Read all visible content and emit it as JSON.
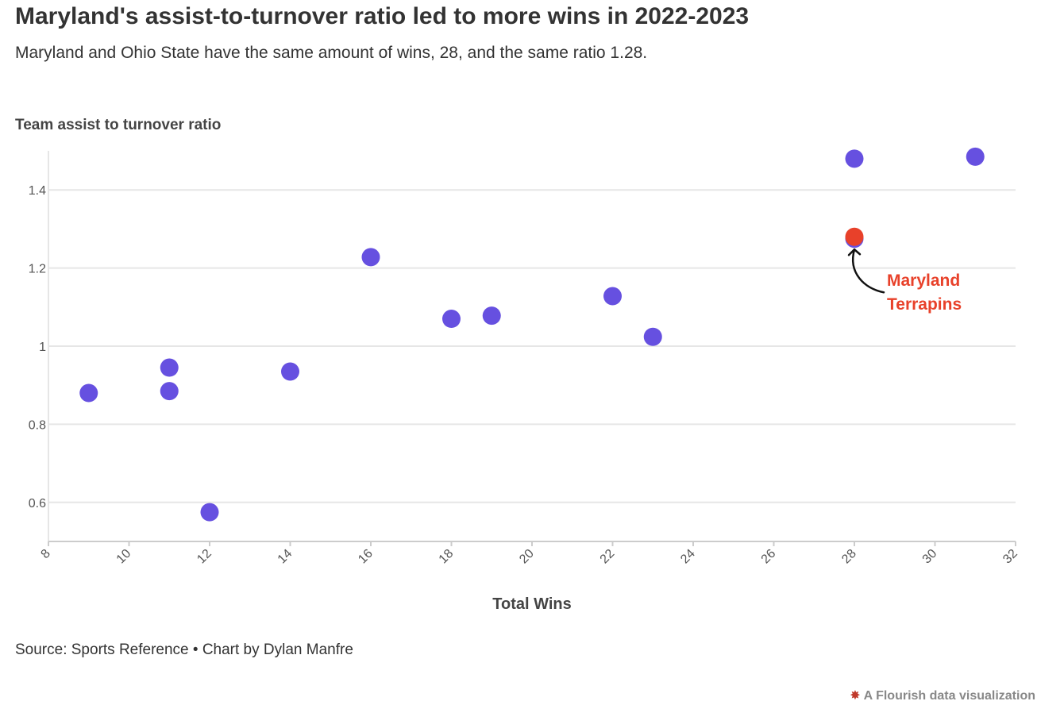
{
  "title": "Maryland's assist-to-turnover ratio led to more wins in 2022-2023",
  "subtitle": "Maryland and Ohio State have the same amount of wins, 28, and the same ratio 1.28.",
  "source": "Source: Sports Reference • Chart by Dylan Manfre",
  "credit": "A Flourish data visualization",
  "colors": {
    "point": "#6650e0",
    "highlight": "#e8412a",
    "grid": "#e6e6e6",
    "axis": "#cccccc"
  },
  "chart_data": {
    "type": "scatter",
    "xlabel": "Total Wins",
    "ylabel": "Team assist to turnover ratio",
    "xlim": [
      8,
      32
    ],
    "ylim": [
      0.5,
      1.5
    ],
    "xticks": [
      8,
      10,
      12,
      14,
      16,
      18,
      20,
      22,
      24,
      26,
      28,
      30,
      32
    ],
    "yticks": [
      0.6,
      0.8,
      1,
      1.2,
      1.4
    ],
    "ytick_labels": [
      "0.6",
      "0.8",
      "1",
      "1.2",
      "1.4"
    ],
    "grid": true,
    "points": [
      {
        "x": 9,
        "y": 0.88
      },
      {
        "x": 11,
        "y": 0.945
      },
      {
        "x": 11,
        "y": 0.885
      },
      {
        "x": 12,
        "y": 0.575
      },
      {
        "x": 14,
        "y": 0.935
      },
      {
        "x": 16,
        "y": 1.228
      },
      {
        "x": 18,
        "y": 1.07
      },
      {
        "x": 19,
        "y": 1.078
      },
      {
        "x": 22,
        "y": 1.128
      },
      {
        "x": 23,
        "y": 1.024
      },
      {
        "x": 28,
        "y": 1.48
      },
      {
        "x": 28,
        "y": 1.275
      },
      {
        "x": 31,
        "y": 1.485
      },
      {
        "x": 28,
        "y": 1.28,
        "highlight": true
      }
    ],
    "annotation": {
      "lines": [
        "Maryland",
        "Terrapins"
      ],
      "x": 28,
      "y": 1.28
    }
  }
}
